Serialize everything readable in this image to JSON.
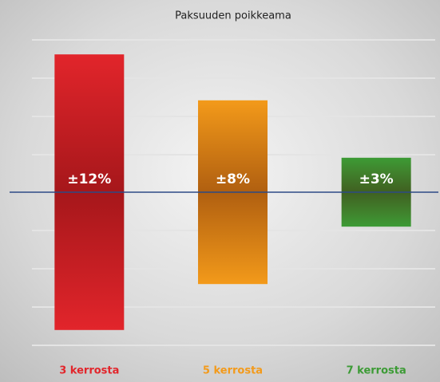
{
  "chart_data": {
    "type": "bar",
    "title": "Paksuuden poikkeama",
    "categories": [
      "3 kerrosta",
      "5 kerrosta",
      "7 kerrosta"
    ],
    "values": [
      12,
      8,
      3
    ],
    "value_labels": [
      "±12%",
      "±8%",
      "±3%"
    ],
    "colors": [
      "#e2252b",
      "#f39a1a",
      "#3c9b35"
    ]
  }
}
